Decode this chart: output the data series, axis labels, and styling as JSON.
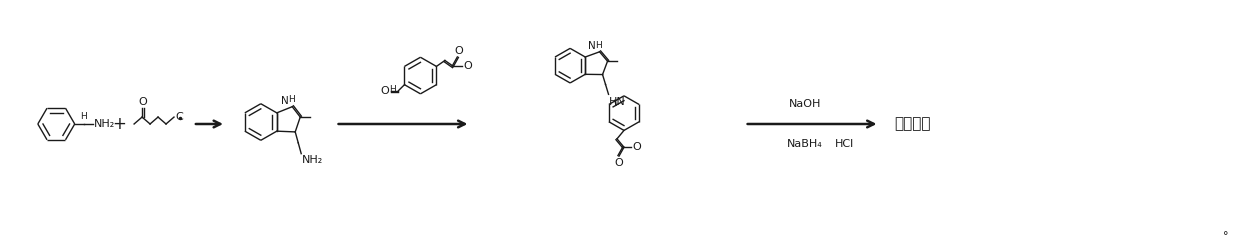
{
  "background_color": "#ffffff",
  "figsize": [
    12.4,
    2.47
  ],
  "dpi": 100,
  "reagent_label_1": "NaOH",
  "reagent_label_2": "NaBH₄",
  "reagent_label_3": "HCl",
  "product_label": "帕比司他",
  "footnote": "°",
  "line_color": "#1a1a1a",
  "lw": 1.0,
  "xlim": [
    0,
    124
  ],
  "ylim": [
    0,
    24.7
  ]
}
